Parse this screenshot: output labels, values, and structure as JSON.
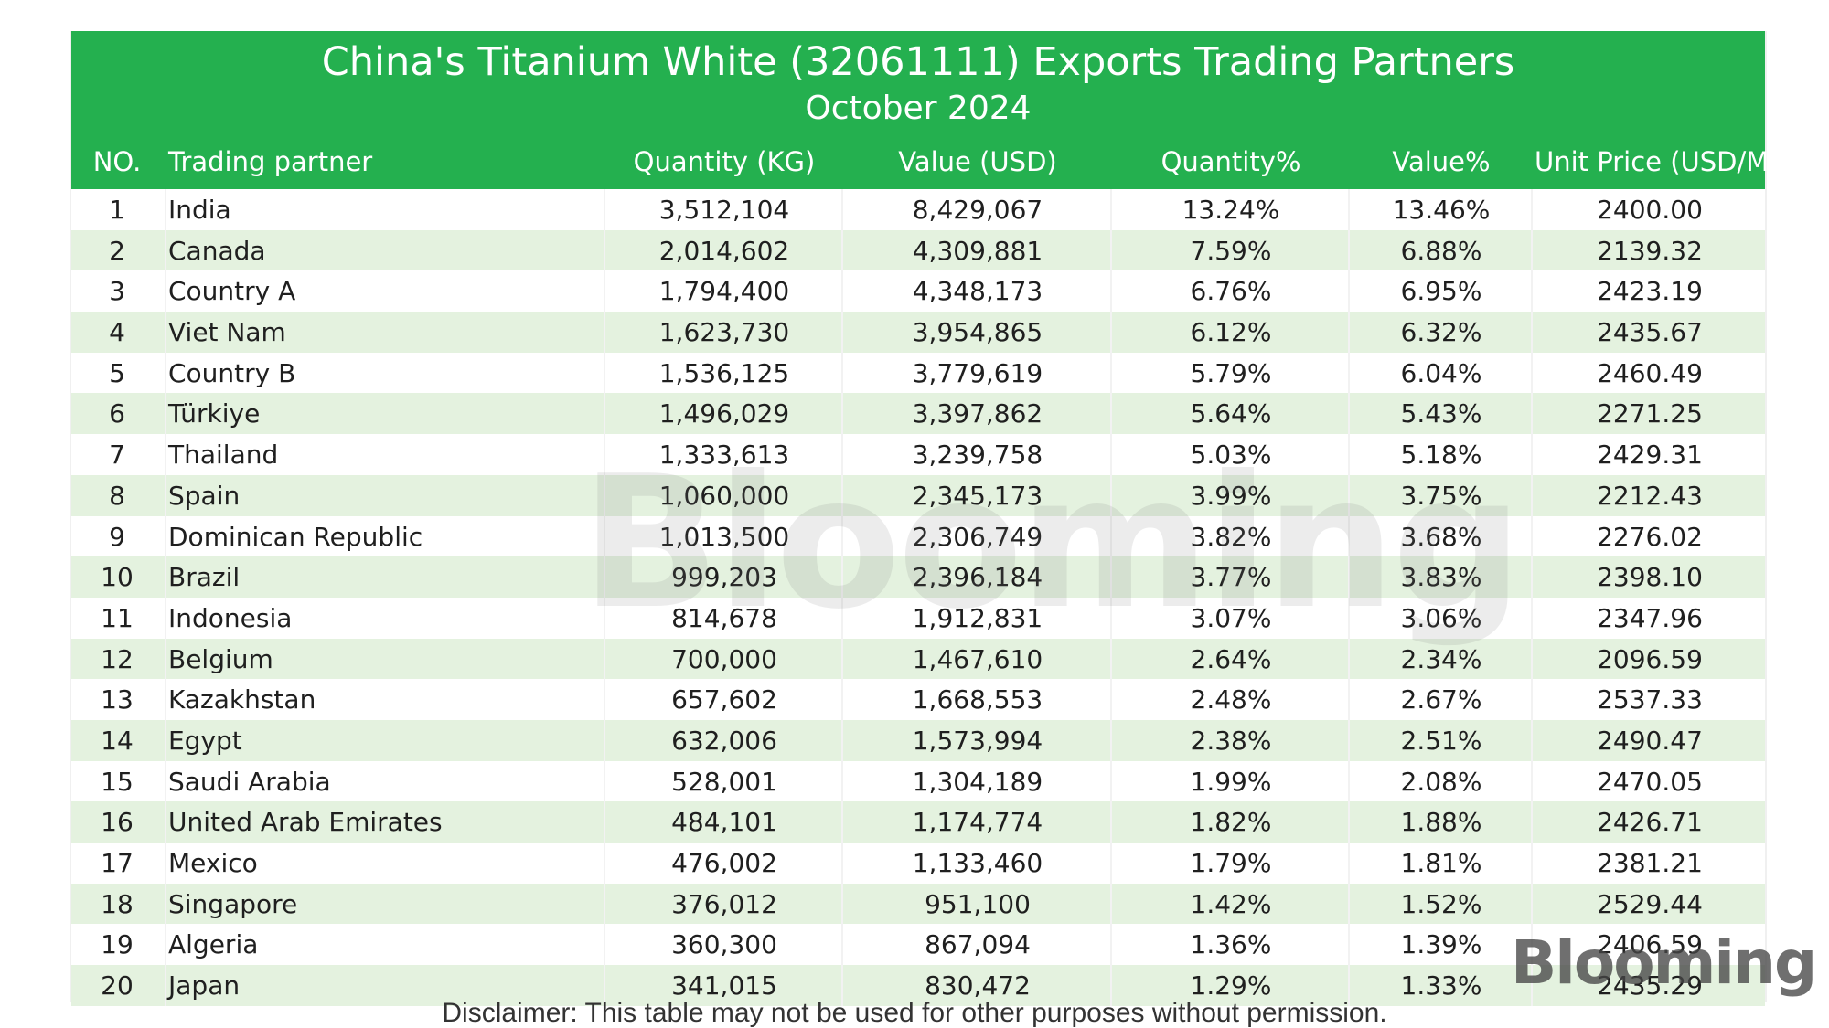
{
  "colors": {
    "accent": "#24b04f",
    "row_alt": "#e4f2df",
    "row_plain": "#ffffff"
  },
  "chart_data": {
    "type": "table",
    "title": "China's Titanium White (32061111) Exports Trading Partners",
    "subtitle": "October 2024",
    "columns": [
      "NO.",
      "Trading partner",
      "Quantity (KG)",
      "Value (USD)",
      "Quantity%",
      "Value%",
      "Unit Price (USD/MT)"
    ],
    "rows": [
      [
        "1",
        "India",
        "3,512,104",
        "8,429,067",
        "13.24%",
        "13.46%",
        "2400.00"
      ],
      [
        "2",
        "Canada",
        "2,014,602",
        "4,309,881",
        "7.59%",
        "6.88%",
        "2139.32"
      ],
      [
        "3",
        "Country A",
        "1,794,400",
        "4,348,173",
        "6.76%",
        "6.95%",
        "2423.19"
      ],
      [
        "4",
        "Viet Nam",
        "1,623,730",
        "3,954,865",
        "6.12%",
        "6.32%",
        "2435.67"
      ],
      [
        "5",
        "Country B",
        "1,536,125",
        "3,779,619",
        "5.79%",
        "6.04%",
        "2460.49"
      ],
      [
        "6",
        "Türkiye",
        "1,496,029",
        "3,397,862",
        "5.64%",
        "5.43%",
        "2271.25"
      ],
      [
        "7",
        "Thailand",
        "1,333,613",
        "3,239,758",
        "5.03%",
        "5.18%",
        "2429.31"
      ],
      [
        "8",
        "Spain",
        "1,060,000",
        "2,345,173",
        "3.99%",
        "3.75%",
        "2212.43"
      ],
      [
        "9",
        "Dominican Republic",
        "1,013,500",
        "2,306,749",
        "3.82%",
        "3.68%",
        "2276.02"
      ],
      [
        "10",
        "Brazil",
        "999,203",
        "2,396,184",
        "3.77%",
        "3.83%",
        "2398.10"
      ],
      [
        "11",
        "Indonesia",
        "814,678",
        "1,912,831",
        "3.07%",
        "3.06%",
        "2347.96"
      ],
      [
        "12",
        "Belgium",
        "700,000",
        "1,467,610",
        "2.64%",
        "2.34%",
        "2096.59"
      ],
      [
        "13",
        "Kazakhstan",
        "657,602",
        "1,668,553",
        "2.48%",
        "2.67%",
        "2537.33"
      ],
      [
        "14",
        "Egypt",
        "632,006",
        "1,573,994",
        "2.38%",
        "2.51%",
        "2490.47"
      ],
      [
        "15",
        "Saudi Arabia",
        "528,001",
        "1,304,189",
        "1.99%",
        "2.08%",
        "2470.05"
      ],
      [
        "16",
        "United Arab Emirates",
        "484,101",
        "1,174,774",
        "1.82%",
        "1.88%",
        "2426.71"
      ],
      [
        "17",
        "Mexico",
        "476,002",
        "1,133,460",
        "1.79%",
        "1.81%",
        "2381.21"
      ],
      [
        "18",
        "Singapore",
        "376,012",
        "951,100",
        "1.42%",
        "1.52%",
        "2529.44"
      ],
      [
        "19",
        "Algeria",
        "360,300",
        "867,094",
        "1.36%",
        "1.39%",
        "2406.59"
      ],
      [
        "20",
        "Japan",
        "341,015",
        "830,472",
        "1.29%",
        "1.33%",
        "2435.29"
      ]
    ]
  },
  "watermark": "Blooming",
  "corner_logo": "Blooming",
  "disclaimer": "Disclaimer: This table may not be used for other purposes without permission."
}
